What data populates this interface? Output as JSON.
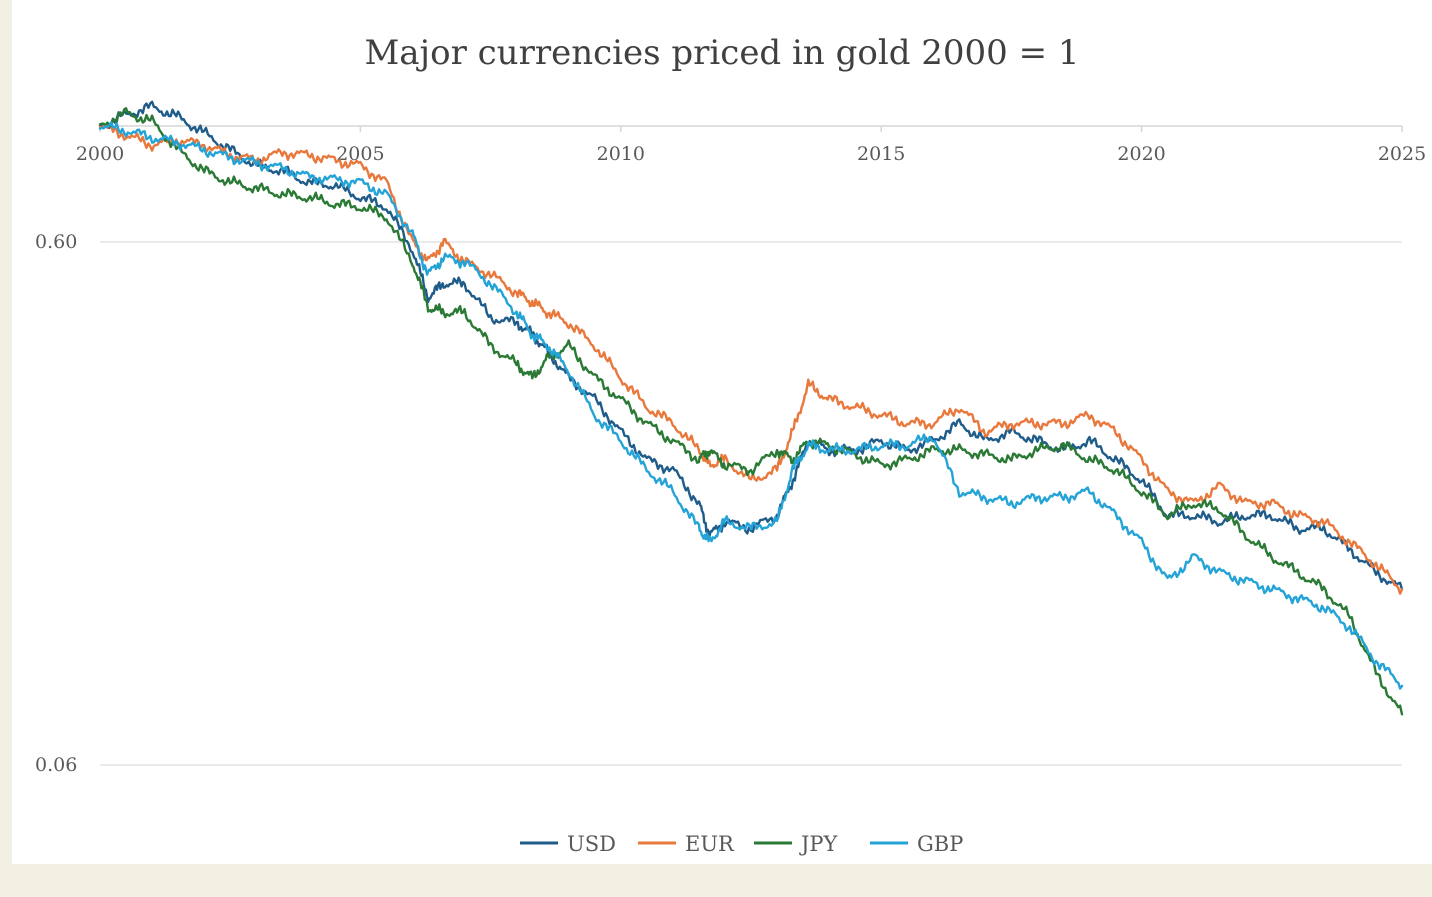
{
  "chart_data": {
    "type": "line",
    "title": "Major currencies priced in gold 2000 = 1",
    "xlabel": "",
    "ylabel": "",
    "x_ticks": [
      "2000",
      "2005",
      "2010",
      "2015",
      "2020",
      "2025"
    ],
    "y_ticks": [
      "0.60",
      "0.06"
    ],
    "x_range": [
      2000,
      2025
    ],
    "y_scale": "log",
    "ylim": [
      0.06,
      1.2
    ],
    "grid": true,
    "legend": "bottom",
    "series": [
      {
        "name": "USD",
        "color": "#1f5c8a",
        "x": [
          2000.0,
          2000.5,
          2001.0,
          2001.5,
          2002.0,
          2002.5,
          2003.0,
          2003.5,
          2004.0,
          2004.5,
          2005.0,
          2005.5,
          2006.0,
          2006.3,
          2006.6,
          2007.0,
          2007.5,
          2008.0,
          2008.3,
          2008.6,
          2009.0,
          2009.5,
          2010.0,
          2010.5,
          2011.0,
          2011.5,
          2011.7,
          2012.0,
          2012.5,
          2013.0,
          2013.3,
          2013.6,
          2014.0,
          2014.5,
          2015.0,
          2015.5,
          2016.0,
          2016.5,
          2017.0,
          2017.5,
          2018.0,
          2018.5,
          2019.0,
          2019.5,
          2020.0,
          2020.5,
          2021.0,
          2021.5,
          2022.0,
          2022.5,
          2023.0,
          2023.5,
          2024.0,
          2024.5,
          2025.0
        ],
        "values": [
          1.0,
          1.05,
          1.09,
          1.04,
          0.97,
          0.9,
          0.84,
          0.82,
          0.78,
          0.77,
          0.73,
          0.7,
          0.58,
          0.47,
          0.5,
          0.5,
          0.43,
          0.42,
          0.4,
          0.37,
          0.33,
          0.3,
          0.26,
          0.23,
          0.22,
          0.19,
          0.165,
          0.175,
          0.17,
          0.18,
          0.21,
          0.25,
          0.24,
          0.24,
          0.25,
          0.24,
          0.25,
          0.27,
          0.25,
          0.26,
          0.25,
          0.24,
          0.25,
          0.23,
          0.21,
          0.18,
          0.18,
          0.175,
          0.18,
          0.18,
          0.17,
          0.17,
          0.155,
          0.14,
          0.13
        ]
      },
      {
        "name": "EUR",
        "color": "#e8783c",
        "x": [
          2000.0,
          2000.5,
          2001.0,
          2001.5,
          2002.0,
          2002.5,
          2003.0,
          2003.5,
          2004.0,
          2004.5,
          2005.0,
          2005.5,
          2006.0,
          2006.3,
          2006.6,
          2007.0,
          2007.5,
          2008.0,
          2008.3,
          2008.6,
          2009.0,
          2009.5,
          2010.0,
          2010.5,
          2011.0,
          2011.5,
          2011.7,
          2012.0,
          2012.5,
          2013.0,
          2013.3,
          2013.6,
          2014.0,
          2014.5,
          2015.0,
          2015.5,
          2016.0,
          2016.5,
          2017.0,
          2017.5,
          2018.0,
          2018.5,
          2019.0,
          2019.5,
          2020.0,
          2020.5,
          2021.0,
          2021.5,
          2022.0,
          2022.5,
          2023.0,
          2023.5,
          2024.0,
          2024.5,
          2025.0
        ],
        "values": [
          1.0,
          0.96,
          0.92,
          0.94,
          0.92,
          0.88,
          0.86,
          0.89,
          0.88,
          0.86,
          0.84,
          0.78,
          0.6,
          0.55,
          0.6,
          0.55,
          0.52,
          0.48,
          0.46,
          0.44,
          0.42,
          0.38,
          0.33,
          0.29,
          0.27,
          0.24,
          0.225,
          0.23,
          0.21,
          0.22,
          0.26,
          0.32,
          0.3,
          0.29,
          0.28,
          0.27,
          0.27,
          0.29,
          0.26,
          0.27,
          0.27,
          0.27,
          0.28,
          0.26,
          0.23,
          0.2,
          0.19,
          0.205,
          0.19,
          0.19,
          0.18,
          0.175,
          0.16,
          0.145,
          0.13
        ]
      },
      {
        "name": "JPY",
        "color": "#2a7a35",
        "x": [
          2000.0,
          2000.5,
          2001.0,
          2001.5,
          2002.0,
          2002.5,
          2003.0,
          2003.5,
          2004.0,
          2004.5,
          2005.0,
          2005.5,
          2006.0,
          2006.3,
          2006.6,
          2007.0,
          2007.5,
          2008.0,
          2008.3,
          2008.6,
          2009.0,
          2009.5,
          2010.0,
          2010.5,
          2011.0,
          2011.5,
          2011.7,
          2012.0,
          2012.5,
          2013.0,
          2013.3,
          2013.6,
          2014.0,
          2014.5,
          2015.0,
          2015.5,
          2016.0,
          2016.5,
          2017.0,
          2017.5,
          2018.0,
          2018.5,
          2019.0,
          2019.5,
          2020.0,
          2020.5,
          2021.0,
          2021.5,
          2022.0,
          2022.5,
          2023.0,
          2023.5,
          2024.0,
          2024.5,
          2025.0
        ],
        "values": [
          1.0,
          1.06,
          1.02,
          0.9,
          0.82,
          0.78,
          0.76,
          0.74,
          0.73,
          0.71,
          0.7,
          0.67,
          0.55,
          0.45,
          0.44,
          0.44,
          0.38,
          0.35,
          0.33,
          0.36,
          0.38,
          0.33,
          0.3,
          0.27,
          0.25,
          0.23,
          0.24,
          0.225,
          0.22,
          0.24,
          0.23,
          0.25,
          0.245,
          0.235,
          0.225,
          0.23,
          0.24,
          0.24,
          0.235,
          0.23,
          0.24,
          0.245,
          0.23,
          0.22,
          0.2,
          0.18,
          0.19,
          0.185,
          0.165,
          0.15,
          0.14,
          0.13,
          0.115,
          0.09,
          0.075
        ]
      },
      {
        "name": "GBP",
        "color": "#24a3d6",
        "x": [
          2000.0,
          2000.5,
          2001.0,
          2001.5,
          2002.0,
          2002.5,
          2003.0,
          2003.5,
          2004.0,
          2004.5,
          2005.0,
          2005.5,
          2006.0,
          2006.3,
          2006.6,
          2007.0,
          2007.5,
          2008.0,
          2008.3,
          2008.6,
          2009.0,
          2009.5,
          2010.0,
          2010.5,
          2011.0,
          2011.5,
          2011.7,
          2012.0,
          2012.5,
          2013.0,
          2013.3,
          2013.6,
          2014.0,
          2014.5,
          2015.0,
          2015.5,
          2016.0,
          2016.5,
          2017.0,
          2017.5,
          2018.0,
          2018.5,
          2019.0,
          2019.5,
          2020.0,
          2020.5,
          2021.0,
          2021.5,
          2022.0,
          2022.5,
          2023.0,
          2023.5,
          2024.0,
          2024.5,
          2025.0
        ],
        "values": [
          1.0,
          0.98,
          0.95,
          0.93,
          0.9,
          0.87,
          0.85,
          0.83,
          0.8,
          0.79,
          0.78,
          0.74,
          0.62,
          0.52,
          0.56,
          0.55,
          0.5,
          0.44,
          0.4,
          0.38,
          0.34,
          0.28,
          0.25,
          0.22,
          0.2,
          0.17,
          0.16,
          0.175,
          0.17,
          0.175,
          0.22,
          0.245,
          0.24,
          0.24,
          0.245,
          0.245,
          0.255,
          0.2,
          0.195,
          0.19,
          0.195,
          0.195,
          0.2,
          0.18,
          0.16,
          0.135,
          0.15,
          0.14,
          0.135,
          0.13,
          0.125,
          0.12,
          0.11,
          0.095,
          0.085
        ]
      }
    ]
  }
}
